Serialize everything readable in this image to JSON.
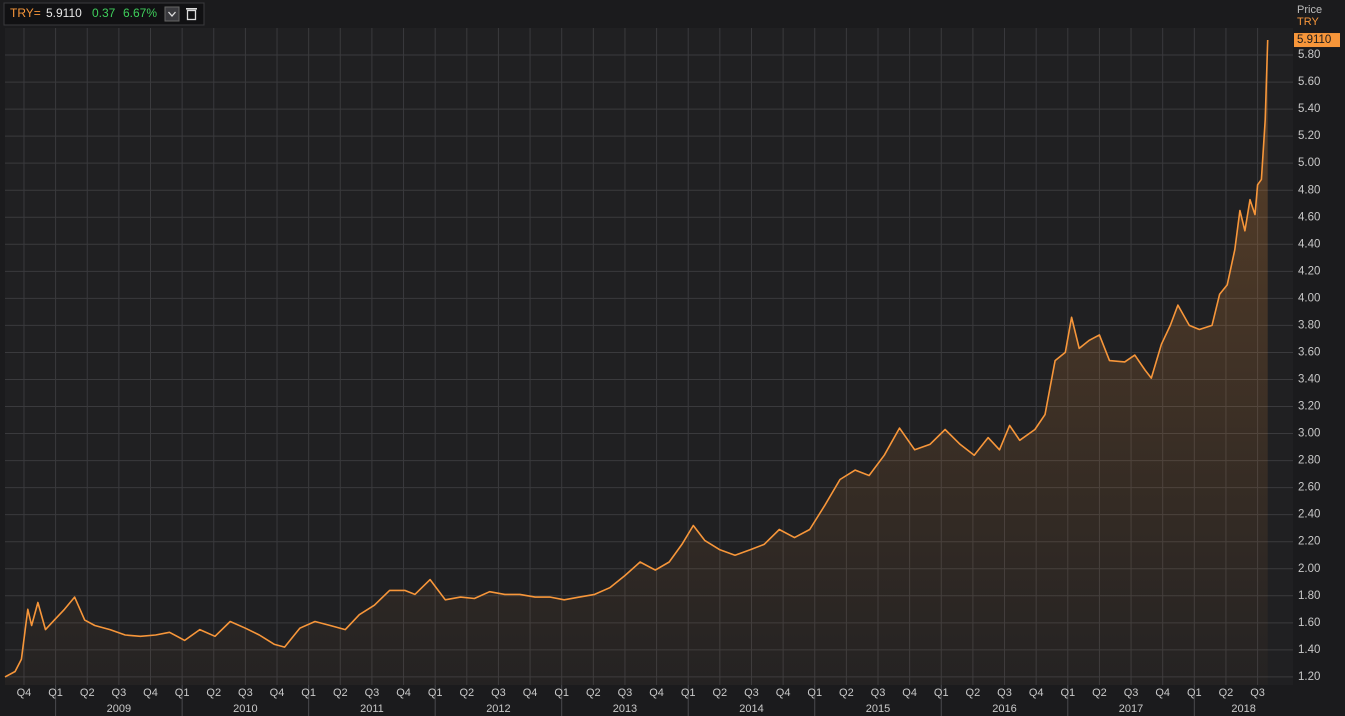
{
  "chart_data": {
    "type": "line",
    "header": {
      "ric": "TRY=",
      "change": "0.37",
      "change_pct": "6.67%"
    },
    "axis_title": "Price",
    "last_price": {
      "value": 5.911,
      "label": "5.9110"
    },
    "grid": true,
    "xlim": [
      2008.6,
      2018.78
    ],
    "ylim": [
      1.14,
      6.0
    ],
    "yticks": [
      {
        "value": 1.2,
        "label": "1.20"
      },
      {
        "value": 1.4,
        "label": "1.40"
      },
      {
        "value": 1.6,
        "label": "1.60"
      },
      {
        "value": 1.8,
        "label": "1.80"
      },
      {
        "value": 2.0,
        "label": "2.00"
      },
      {
        "value": 2.2,
        "label": "2.20"
      },
      {
        "value": 2.4,
        "label": "2.40"
      },
      {
        "value": 2.6,
        "label": "2.60"
      },
      {
        "value": 2.8,
        "label": "2.80"
      },
      {
        "value": 3.0,
        "label": "3.00"
      },
      {
        "value": 3.2,
        "label": "3.20"
      },
      {
        "value": 3.4,
        "label": "3.40"
      },
      {
        "value": 3.6,
        "label": "3.60"
      },
      {
        "value": 3.8,
        "label": "3.80"
      },
      {
        "value": 4.0,
        "label": "4.00"
      },
      {
        "value": 4.2,
        "label": "4.20"
      },
      {
        "value": 4.4,
        "label": "4.40"
      },
      {
        "value": 4.6,
        "label": "4.60"
      },
      {
        "value": 4.8,
        "label": "4.80"
      },
      {
        "value": 5.0,
        "label": "5.00"
      },
      {
        "value": 5.2,
        "label": "5.20"
      },
      {
        "value": 5.4,
        "label": "5.40"
      },
      {
        "value": 5.6,
        "label": "5.60"
      },
      {
        "value": 5.8,
        "label": "5.80"
      }
    ],
    "xticks": [
      {
        "value": 2008.75,
        "label": "Q4"
      },
      {
        "value": 2009,
        "label": "Q1"
      },
      {
        "value": 2009.25,
        "label": "Q2"
      },
      {
        "value": 2009.5,
        "label": "Q3"
      },
      {
        "value": 2009.75,
        "label": "Q4"
      },
      {
        "value": 2010,
        "label": "Q1"
      },
      {
        "value": 2010.25,
        "label": "Q2"
      },
      {
        "value": 2010.5,
        "label": "Q3"
      },
      {
        "value": 2010.75,
        "label": "Q4"
      },
      {
        "value": 2011,
        "label": "Q1"
      },
      {
        "value": 2011.25,
        "label": "Q2"
      },
      {
        "value": 2011.5,
        "label": "Q3"
      },
      {
        "value": 2011.75,
        "label": "Q4"
      },
      {
        "value": 2012,
        "label": "Q1"
      },
      {
        "value": 2012.25,
        "label": "Q2"
      },
      {
        "value": 2012.5,
        "label": "Q3"
      },
      {
        "value": 2012.75,
        "label": "Q4"
      },
      {
        "value": 2013,
        "label": "Q1"
      },
      {
        "value": 2013.25,
        "label": "Q2"
      },
      {
        "value": 2013.5,
        "label": "Q3"
      },
      {
        "value": 2013.75,
        "label": "Q4"
      },
      {
        "value": 2014,
        "label": "Q1"
      },
      {
        "value": 2014.25,
        "label": "Q2"
      },
      {
        "value": 2014.5,
        "label": "Q3"
      },
      {
        "value": 2014.75,
        "label": "Q4"
      },
      {
        "value": 2015,
        "label": "Q1"
      },
      {
        "value": 2015.25,
        "label": "Q2"
      },
      {
        "value": 2015.5,
        "label": "Q3"
      },
      {
        "value": 2015.75,
        "label": "Q4"
      },
      {
        "value": 2016,
        "label": "Q1"
      },
      {
        "value": 2016.25,
        "label": "Q2"
      },
      {
        "value": 2016.5,
        "label": "Q3"
      },
      {
        "value": 2016.75,
        "label": "Q4"
      },
      {
        "value": 2017,
        "label": "Q1"
      },
      {
        "value": 2017.25,
        "label": "Q2"
      },
      {
        "value": 2017.5,
        "label": "Q3"
      },
      {
        "value": 2017.75,
        "label": "Q4"
      },
      {
        "value": 2018,
        "label": "Q1"
      },
      {
        "value": 2018.25,
        "label": "Q2"
      },
      {
        "value": 2018.5,
        "label": "Q3"
      }
    ],
    "year_ticks": [
      {
        "value": 2009.5,
        "label": "2009"
      },
      {
        "value": 2010.5,
        "label": "2010"
      },
      {
        "value": 2011.5,
        "label": "2011"
      },
      {
        "value": 2012.5,
        "label": "2012"
      },
      {
        "value": 2013.5,
        "label": "2013"
      },
      {
        "value": 2014.5,
        "label": "2014"
      },
      {
        "value": 2015.5,
        "label": "2015"
      },
      {
        "value": 2016.5,
        "label": "2016"
      },
      {
        "value": 2017.5,
        "label": "2017"
      },
      {
        "value": 2018.39,
        "label": "2018"
      }
    ],
    "x": [
      2008.6,
      2008.68,
      2008.73,
      2008.78,
      2008.81,
      2008.86,
      2008.92,
      2008.99,
      2009.07,
      2009.15,
      2009.23,
      2009.31,
      2009.43,
      2009.55,
      2009.67,
      2009.79,
      2009.9,
      2010.02,
      2010.14,
      2010.26,
      2010.38,
      2010.5,
      2010.61,
      2010.73,
      2010.81,
      2010.93,
      2011.05,
      2011.17,
      2011.29,
      2011.4,
      2011.52,
      2011.64,
      2011.76,
      2011.84,
      2011.96,
      2012.08,
      2012.2,
      2012.31,
      2012.43,
      2012.55,
      2012.67,
      2012.79,
      2012.91,
      2013.02,
      2013.14,
      2013.26,
      2013.38,
      2013.5,
      2013.62,
      2013.74,
      2013.85,
      2013.95,
      2014.04,
      2014.13,
      2014.25,
      2014.37,
      2014.49,
      2014.6,
      2014.72,
      2014.84,
      2014.96,
      2015.08,
      2015.2,
      2015.32,
      2015.43,
      2015.55,
      2015.67,
      2015.79,
      2015.91,
      2016.03,
      2016.15,
      2016.26,
      2016.37,
      2016.46,
      2016.54,
      2016.62,
      2016.74,
      2016.82,
      2016.9,
      2016.98,
      2017.03,
      2017.09,
      2017.17,
      2017.25,
      2017.33,
      2017.45,
      2017.53,
      2017.61,
      2017.66,
      2017.74,
      2017.81,
      2017.87,
      2017.96,
      2018.04,
      2018.14,
      2018.2,
      2018.26,
      2018.32,
      2018.36,
      2018.4,
      2018.44,
      2018.48,
      2018.5,
      2018.53,
      2018.56,
      2018.58
    ],
    "series": [
      {
        "name": "TRY",
        "color": "#f7963a",
        "values": [
          1.2,
          1.24,
          1.33,
          1.7,
          1.58,
          1.75,
          1.55,
          1.62,
          1.7,
          1.79,
          1.62,
          1.58,
          1.55,
          1.51,
          1.5,
          1.51,
          1.53,
          1.47,
          1.55,
          1.5,
          1.61,
          1.56,
          1.51,
          1.44,
          1.42,
          1.56,
          1.61,
          1.58,
          1.55,
          1.66,
          1.73,
          1.84,
          1.84,
          1.81,
          1.92,
          1.77,
          1.79,
          1.78,
          1.83,
          1.81,
          1.81,
          1.79,
          1.79,
          1.77,
          1.79,
          1.81,
          1.86,
          1.95,
          2.05,
          1.99,
          2.05,
          2.18,
          2.32,
          2.21,
          2.14,
          2.1,
          2.14,
          2.18,
          2.29,
          2.23,
          2.29,
          2.47,
          2.66,
          2.73,
          2.69,
          2.84,
          3.04,
          2.88,
          2.92,
          3.03,
          2.92,
          2.84,
          2.97,
          2.88,
          3.06,
          2.95,
          3.03,
          3.14,
          3.54,
          3.6,
          3.86,
          3.63,
          3.69,
          3.73,
          3.54,
          3.53,
          3.58,
          3.47,
          3.41,
          3.66,
          3.8,
          3.95,
          3.8,
          3.77,
          3.8,
          4.03,
          4.1,
          4.36,
          4.65,
          4.5,
          4.73,
          4.62,
          4.84,
          4.88,
          5.32,
          5.911
        ]
      }
    ]
  }
}
